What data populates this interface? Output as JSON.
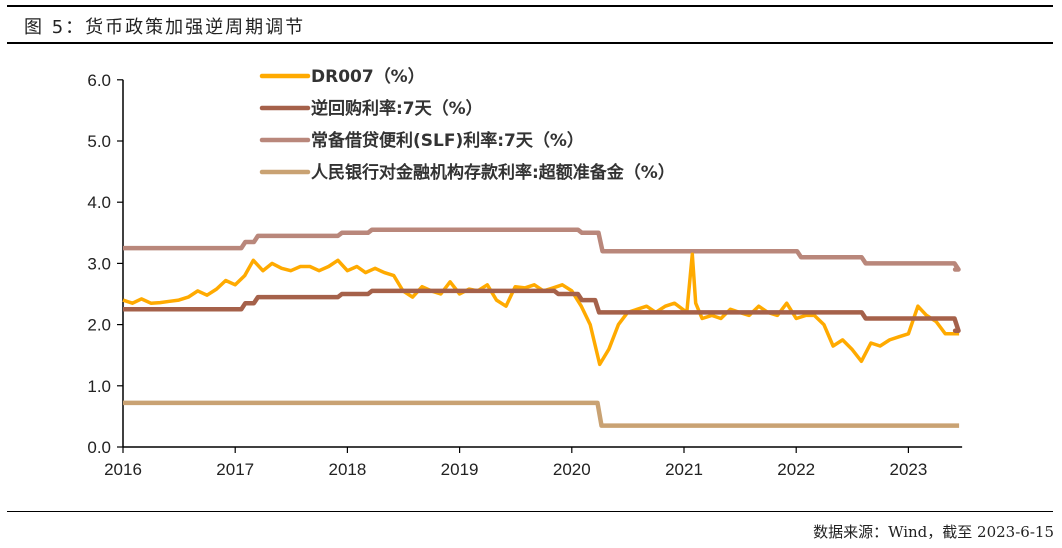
{
  "title": "图 5：货币政策加强逆周期调节",
  "source": "数据来源：Wind，截至 2023-6-15",
  "chart_data": {
    "type": "line",
    "title": "",
    "xlabel": "",
    "ylabel": "",
    "xlim": [
      "2016-01-01",
      "2023-06-15"
    ],
    "ylim": [
      0,
      6
    ],
    "x_ticks": [
      "2016",
      "2017",
      "2018",
      "2019",
      "2020",
      "2021",
      "2022",
      "2023"
    ],
    "y_ticks": [
      "0.0",
      "1.0",
      "2.0",
      "3.0",
      "4.0",
      "5.0",
      "6.0"
    ],
    "grid": false,
    "legend": "top",
    "series": [
      {
        "name": "DR007（%）",
        "color": "#FFAA00",
        "step": false,
        "points": [
          [
            "2016-01-01",
            2.4
          ],
          [
            "2016-02-01",
            2.35
          ],
          [
            "2016-03-01",
            2.42
          ],
          [
            "2016-04-01",
            2.35
          ],
          [
            "2016-05-01",
            2.36
          ],
          [
            "2016-06-01",
            2.38
          ],
          [
            "2016-07-01",
            2.4
          ],
          [
            "2016-08-01",
            2.45
          ],
          [
            "2016-09-01",
            2.55
          ],
          [
            "2016-10-01",
            2.48
          ],
          [
            "2016-11-01",
            2.58
          ],
          [
            "2016-12-01",
            2.72
          ],
          [
            "2017-01-01",
            2.65
          ],
          [
            "2017-02-01",
            2.8
          ],
          [
            "2017-03-01",
            3.05
          ],
          [
            "2017-04-01",
            2.88
          ],
          [
            "2017-05-01",
            3.0
          ],
          [
            "2017-06-01",
            2.92
          ],
          [
            "2017-07-01",
            2.88
          ],
          [
            "2017-08-01",
            2.95
          ],
          [
            "2017-09-01",
            2.95
          ],
          [
            "2017-10-01",
            2.88
          ],
          [
            "2017-11-01",
            2.95
          ],
          [
            "2017-12-01",
            3.05
          ],
          [
            "2018-01-01",
            2.88
          ],
          [
            "2018-02-01",
            2.95
          ],
          [
            "2018-03-01",
            2.85
          ],
          [
            "2018-04-01",
            2.92
          ],
          [
            "2018-05-01",
            2.85
          ],
          [
            "2018-06-01",
            2.8
          ],
          [
            "2018-07-01",
            2.55
          ],
          [
            "2018-08-01",
            2.45
          ],
          [
            "2018-09-01",
            2.62
          ],
          [
            "2018-10-01",
            2.55
          ],
          [
            "2018-11-01",
            2.5
          ],
          [
            "2018-12-01",
            2.7
          ],
          [
            "2019-01-01",
            2.5
          ],
          [
            "2019-02-01",
            2.58
          ],
          [
            "2019-03-01",
            2.55
          ],
          [
            "2019-04-01",
            2.65
          ],
          [
            "2019-05-01",
            2.4
          ],
          [
            "2019-06-01",
            2.3
          ],
          [
            "2019-07-01",
            2.62
          ],
          [
            "2019-08-01",
            2.6
          ],
          [
            "2019-09-01",
            2.65
          ],
          [
            "2019-10-01",
            2.55
          ],
          [
            "2019-11-01",
            2.6
          ],
          [
            "2019-12-01",
            2.65
          ],
          [
            "2020-01-01",
            2.55
          ],
          [
            "2020-02-01",
            2.3
          ],
          [
            "2020-03-01",
            2.0
          ],
          [
            "2020-04-01",
            1.35
          ],
          [
            "2020-05-01",
            1.6
          ],
          [
            "2020-06-01",
            2.0
          ],
          [
            "2020-07-01",
            2.2
          ],
          [
            "2020-08-01",
            2.25
          ],
          [
            "2020-09-01",
            2.3
          ],
          [
            "2020-10-01",
            2.2
          ],
          [
            "2020-11-01",
            2.3
          ],
          [
            "2020-12-01",
            2.35
          ],
          [
            "2021-01-10",
            2.2
          ],
          [
            "2021-01-28",
            3.15
          ],
          [
            "2021-02-08",
            2.35
          ],
          [
            "2021-03-01",
            2.1
          ],
          [
            "2021-04-01",
            2.15
          ],
          [
            "2021-05-01",
            2.1
          ],
          [
            "2021-06-01",
            2.25
          ],
          [
            "2021-07-01",
            2.2
          ],
          [
            "2021-08-01",
            2.15
          ],
          [
            "2021-09-01",
            2.3
          ],
          [
            "2021-10-01",
            2.2
          ],
          [
            "2021-11-01",
            2.15
          ],
          [
            "2021-12-01",
            2.35
          ],
          [
            "2022-01-01",
            2.1
          ],
          [
            "2022-02-01",
            2.15
          ],
          [
            "2022-03-01",
            2.15
          ],
          [
            "2022-04-01",
            2.0
          ],
          [
            "2022-05-01",
            1.65
          ],
          [
            "2022-06-01",
            1.75
          ],
          [
            "2022-07-01",
            1.6
          ],
          [
            "2022-08-01",
            1.4
          ],
          [
            "2022-09-01",
            1.7
          ],
          [
            "2022-10-01",
            1.65
          ],
          [
            "2022-11-01",
            1.75
          ],
          [
            "2022-12-01",
            1.8
          ],
          [
            "2023-01-01",
            1.85
          ],
          [
            "2023-02-01",
            2.3
          ],
          [
            "2023-03-01",
            2.15
          ],
          [
            "2023-04-01",
            2.05
          ],
          [
            "2023-05-01",
            1.85
          ],
          [
            "2023-06-15",
            1.85
          ]
        ]
      },
      {
        "name": "逆回购利率:7天（%）",
        "color": "#A5614A",
        "step": true,
        "points": [
          [
            "2016-01-01",
            2.25
          ],
          [
            "2017-02-03",
            2.35
          ],
          [
            "2017-03-16",
            2.45
          ],
          [
            "2017-12-14",
            2.5
          ],
          [
            "2018-03-22",
            2.55
          ],
          [
            "2019-11-18",
            2.5
          ],
          [
            "2020-02-03",
            2.4
          ],
          [
            "2020-03-30",
            2.2
          ],
          [
            "2022-08-15",
            2.1
          ],
          [
            "2023-06-13",
            1.9
          ],
          [
            "2023-06-15",
            1.9
          ]
        ]
      },
      {
        "name": "常备借贷便利(SLF)利率:7天（%）",
        "color": "#B9877B",
        "step": true,
        "points": [
          [
            "2016-01-01",
            3.25
          ],
          [
            "2017-02-03",
            3.35
          ],
          [
            "2017-03-16",
            3.45
          ],
          [
            "2017-12-14",
            3.5
          ],
          [
            "2018-03-22",
            3.55
          ],
          [
            "2020-02-03",
            3.5
          ],
          [
            "2020-04-10",
            3.2
          ],
          [
            "2022-01-17",
            3.1
          ],
          [
            "2022-08-15",
            3.0
          ],
          [
            "2023-06-13",
            2.9
          ],
          [
            "2023-06-15",
            2.9
          ]
        ]
      },
      {
        "name": "人民银行对金融机构存款利率:超额准备金（%）",
        "color": "#C9A273",
        "step": true,
        "points": [
          [
            "2016-01-01",
            0.72
          ],
          [
            "2020-04-07",
            0.35
          ],
          [
            "2023-06-15",
            0.35
          ]
        ]
      }
    ]
  }
}
